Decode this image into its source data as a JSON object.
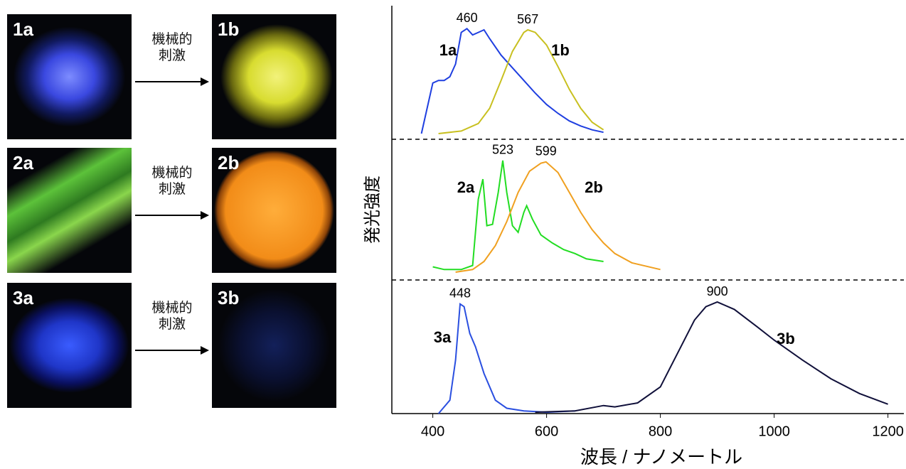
{
  "photos": [
    {
      "before": "1a",
      "after": "1b",
      "arrow_label": [
        "機械的",
        "刺激"
      ]
    },
    {
      "before": "2a",
      "after": "2b",
      "arrow_label": [
        "機械的",
        "刺激"
      ]
    },
    {
      "before": "3a",
      "after": "3b",
      "arrow_label": [
        "機械的",
        "刺激"
      ]
    }
  ],
  "chart_data": [
    {
      "type": "line",
      "xlim": [
        328,
        1228
      ],
      "ylim": [
        0,
        1
      ],
      "series": [
        {
          "name": "1a",
          "color": "#1f3fe0",
          "peak": 460,
          "x": [
            380,
            390,
            400,
            410,
            420,
            430,
            440,
            450,
            460,
            470,
            480,
            490,
            500,
            520,
            540,
            560,
            580,
            600,
            620,
            640,
            660,
            680,
            700
          ],
          "values": [
            0.0,
            0.2,
            0.4,
            0.42,
            0.42,
            0.45,
            0.55,
            0.8,
            0.83,
            0.78,
            0.8,
            0.82,
            0.75,
            0.62,
            0.52,
            0.42,
            0.32,
            0.23,
            0.16,
            0.1,
            0.06,
            0.03,
            0.01
          ]
        },
        {
          "name": "1b",
          "color": "#c8c020",
          "peak": 567,
          "x": [
            410,
            450,
            480,
            500,
            520,
            540,
            560,
            567,
            580,
            600,
            620,
            640,
            660,
            680,
            700
          ],
          "values": [
            0.0,
            0.02,
            0.08,
            0.2,
            0.42,
            0.65,
            0.8,
            0.82,
            0.8,
            0.7,
            0.53,
            0.35,
            0.2,
            0.09,
            0.03
          ]
        }
      ]
    },
    {
      "type": "line",
      "xlim": [
        328,
        1228
      ],
      "ylim": [
        0,
        1
      ],
      "y_label": "発光強度",
      "series": [
        {
          "name": "2a",
          "color": "#22dd22",
          "peak": 523,
          "x": [
            400,
            420,
            450,
            470,
            480,
            488,
            495,
            505,
            515,
            523,
            530,
            540,
            550,
            560,
            565,
            575,
            590,
            610,
            630,
            650,
            670,
            700
          ],
          "values": [
            0.04,
            0.02,
            0.02,
            0.05,
            0.55,
            0.7,
            0.35,
            0.36,
            0.6,
            0.84,
            0.6,
            0.35,
            0.3,
            0.45,
            0.5,
            0.4,
            0.28,
            0.22,
            0.17,
            0.14,
            0.1,
            0.08
          ]
        },
        {
          "name": "2b",
          "color": "#f0a020",
          "peak": 599,
          "x": [
            440,
            470,
            490,
            510,
            530,
            550,
            570,
            590,
            599,
            620,
            640,
            660,
            680,
            700,
            720,
            750,
            800
          ],
          "values": [
            0.0,
            0.02,
            0.08,
            0.2,
            0.38,
            0.6,
            0.76,
            0.82,
            0.83,
            0.75,
            0.6,
            0.45,
            0.32,
            0.22,
            0.14,
            0.07,
            0.02
          ]
        }
      ]
    },
    {
      "type": "line",
      "xlim": [
        328,
        1228
      ],
      "ylim": [
        0,
        1
      ],
      "xticks": [
        400,
        600,
        800,
        1000,
        1200
      ],
      "x_label": "波長 / ナノメートル",
      "series": [
        {
          "name": "3a",
          "color": "#2a4fe0",
          "peak": 448,
          "x": [
            410,
            430,
            440,
            448,
            455,
            465,
            475,
            490,
            510,
            530,
            560,
            600,
            650
          ],
          "values": [
            0.0,
            0.1,
            0.4,
            0.82,
            0.8,
            0.6,
            0.5,
            0.3,
            0.1,
            0.04,
            0.02,
            0.01,
            0.02
          ]
        },
        {
          "name": "3b",
          "color": "#10103a",
          "peak": 900,
          "x": [
            580,
            650,
            700,
            720,
            760,
            800,
            830,
            860,
            880,
            900,
            930,
            970,
            1000,
            1050,
            1100,
            1150,
            1200
          ],
          "values": [
            0.01,
            0.02,
            0.06,
            0.05,
            0.08,
            0.2,
            0.45,
            0.7,
            0.8,
            0.835,
            0.78,
            0.65,
            0.55,
            0.4,
            0.26,
            0.15,
            0.07
          ]
        }
      ]
    }
  ]
}
